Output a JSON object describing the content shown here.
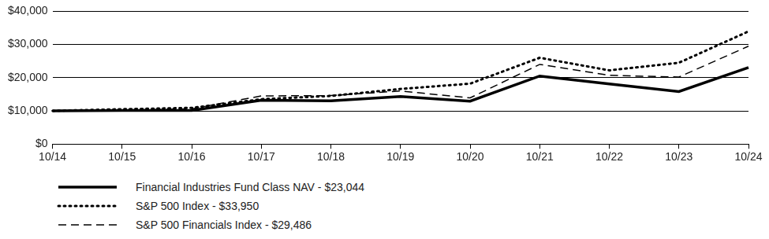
{
  "chart_data": {
    "type": "line",
    "categories": [
      "10/14",
      "10/15",
      "10/16",
      "10/17",
      "10/18",
      "10/19",
      "10/20",
      "10/21",
      "10/22",
      "10/23",
      "10/24"
    ],
    "series": [
      {
        "name": "Financial Industries Fund Class NAV - $23,044",
        "color": "#000000",
        "line_style": "solid",
        "values": [
          10000,
          10100,
          10100,
          13200,
          13000,
          14300,
          12900,
          20500,
          18100,
          15800,
          23044
        ]
      },
      {
        "name": "S&P 500 Index - $33,950",
        "color": "#000000",
        "line_style": "dotted",
        "values": [
          10000,
          10500,
          10900,
          13500,
          14500,
          16600,
          18200,
          26000,
          22200,
          24500,
          33950
        ]
      },
      {
        "name": "S&P 500 Financials Index - $29,486",
        "color": "#000000",
        "line_style": "dashed",
        "values": [
          10000,
          10300,
          10600,
          14500,
          14600,
          16000,
          13900,
          24000,
          20700,
          20200,
          29486
        ]
      }
    ],
    "ylim": [
      0,
      40000
    ],
    "yticks": [
      {
        "value": 0,
        "label": "$0"
      },
      {
        "value": 10000,
        "label": "$10,000"
      },
      {
        "value": 20000,
        "label": "$20,000"
      },
      {
        "value": 30000,
        "label": "$30,000"
      },
      {
        "value": 40000,
        "label": "$40,000"
      }
    ],
    "grid": true,
    "legend": "bottom"
  }
}
